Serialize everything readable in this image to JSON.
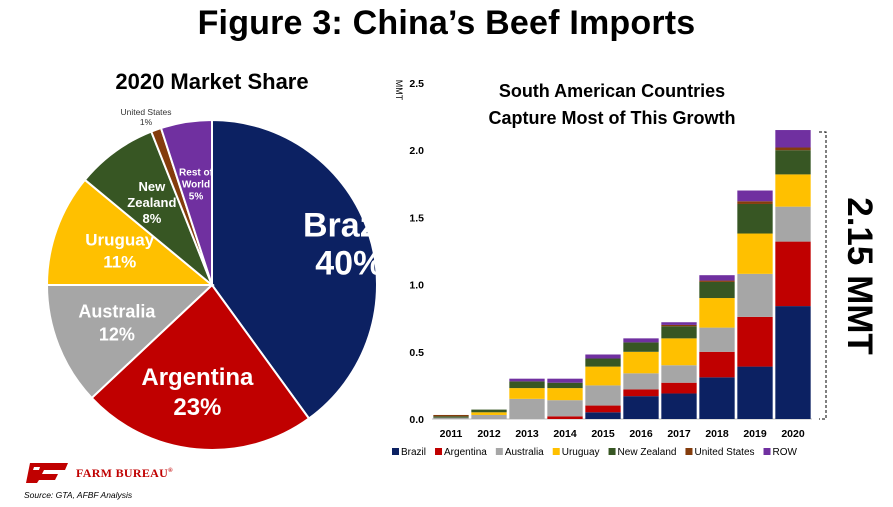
{
  "title": "Figure 3: China’s Beef Imports",
  "pie_title": "2020 Market Share",
  "bar_title_line1": "South American Countries",
  "bar_title_line2": "Capture Most of This Growth",
  "total_callout": "2.15 MMT",
  "source": "Source:  GTA, AFBF Analysis",
  "logo_text": "FARM BUREAU",
  "logo_mark": "FB",
  "colors": {
    "Brazil": "#0c2162",
    "Argentina": "#c00000",
    "Australia": "#a6a6a6",
    "Uruguay": "#ffc000",
    "New Zealand": "#375623",
    "United States": "#843c0c",
    "ROW": "#7030a0"
  },
  "chart_data": [
    {
      "type": "pie",
      "title": "2020 Market Share",
      "labels": [
        "Brazil",
        "Argentina",
        "Australia",
        "Uruguay",
        "New Zealand",
        "United States",
        "Rest of World"
      ],
      "values": [
        40,
        23,
        12,
        11,
        8,
        1,
        5
      ],
      "value_labels": [
        "40%",
        "23%",
        "12%",
        "11%",
        "8%",
        "1%",
        "5%"
      ],
      "label_lines": [
        [
          "Brazil"
        ],
        [
          "Argentina"
        ],
        [
          "Australia"
        ],
        [
          "Uruguay"
        ],
        [
          "New",
          "Zealand"
        ],
        [
          "United States"
        ],
        [
          "Rest of",
          "World"
        ]
      ]
    },
    {
      "type": "bar",
      "stacked": true,
      "title": "South American Countries Capture Most of This Growth",
      "ylabel": "MMT",
      "ylim": [
        0,
        2.5
      ],
      "yticks": [
        0.0,
        0.5,
        1.0,
        1.5,
        2.0,
        2.5
      ],
      "ytick_labels": [
        "0.0",
        "0.5",
        "1.0",
        "1.5",
        "2.0",
        "2.5"
      ],
      "categories": [
        "2011",
        "2012",
        "2013",
        "2014",
        "2015",
        "2016",
        "2017",
        "2018",
        "2019",
        "2020"
      ],
      "series": [
        {
          "name": "Brazil",
          "values": [
            0.0,
            0.0,
            0.0,
            0.0,
            0.05,
            0.17,
            0.19,
            0.31,
            0.39,
            0.84
          ]
        },
        {
          "name": "Argentina",
          "values": [
            0.0,
            0.0,
            0.0,
            0.02,
            0.05,
            0.05,
            0.08,
            0.19,
            0.37,
            0.48
          ]
        },
        {
          "name": "Australia",
          "values": [
            0.01,
            0.03,
            0.15,
            0.12,
            0.15,
            0.12,
            0.13,
            0.18,
            0.32,
            0.26
          ]
        },
        {
          "name": "Uruguay",
          "values": [
            0.0,
            0.02,
            0.08,
            0.09,
            0.14,
            0.16,
            0.2,
            0.22,
            0.3,
            0.24
          ]
        },
        {
          "name": "New Zealand",
          "values": [
            0.01,
            0.02,
            0.05,
            0.04,
            0.06,
            0.07,
            0.09,
            0.12,
            0.22,
            0.18
          ]
        },
        {
          "name": "United States",
          "values": [
            0.01,
            0.0,
            0.0,
            0.0,
            0.0,
            0.0,
            0.01,
            0.01,
            0.02,
            0.02
          ]
        },
        {
          "name": "ROW",
          "values": [
            0.0,
            0.0,
            0.02,
            0.03,
            0.03,
            0.03,
            0.02,
            0.04,
            0.08,
            0.13
          ]
        }
      ]
    }
  ]
}
